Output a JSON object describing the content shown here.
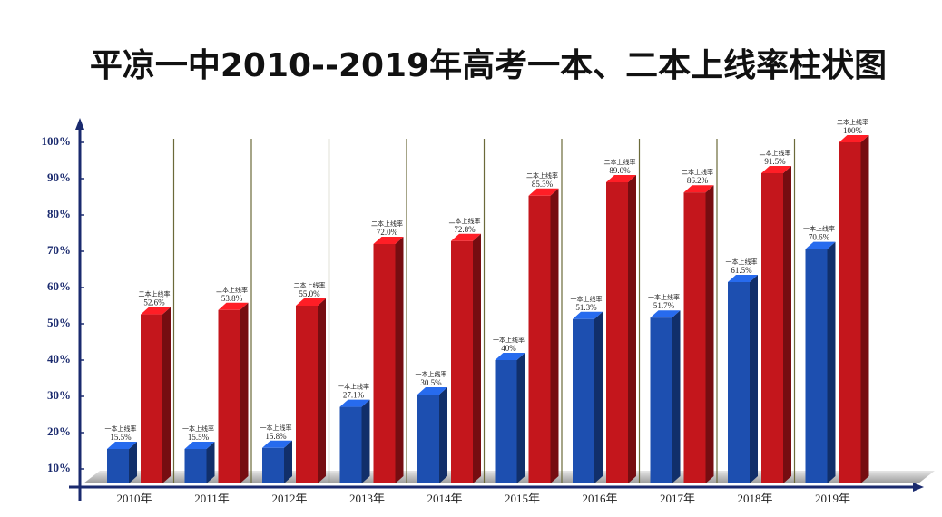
{
  "chart_data": {
    "type": "bar3d",
    "title": "平凉一中2010--2019年高考一本、二本上线率柱状图",
    "categories": [
      "2010年",
      "2011年",
      "2012年",
      "2013年",
      "2014年",
      "2015年",
      "2016年",
      "2017年",
      "2018年",
      "2019年"
    ],
    "series": [
      {
        "name": "一本上线率",
        "color": "#1d4fb0",
        "values": [
          15.5,
          15.5,
          15.8,
          27.1,
          30.5,
          40,
          51.3,
          51.7,
          61.5,
          70.6
        ],
        "value_labels": [
          "15.5%",
          "15.5%",
          "15.8%",
          "27.1%",
          "30.5%",
          "40%",
          "51.3%",
          "51.7%",
          "61.5%",
          "70.6%"
        ]
      },
      {
        "name": "二本上线率",
        "color": "#c4161c",
        "values": [
          52.6,
          53.8,
          55.0,
          72.0,
          72.8,
          85.3,
          89.0,
          86.2,
          91.5,
          100
        ],
        "value_labels": [
          "52.6%",
          "53.8%",
          "55.0%",
          "72.0%",
          "72.8%",
          "85.3%",
          "89.0%",
          "86.2%",
          "91.5%",
          "100%"
        ]
      }
    ],
    "ylim": [
      5,
      104
    ],
    "yticks": [
      {
        "value": 10,
        "label": "10%"
      },
      {
        "value": 20,
        "label": "20%"
      },
      {
        "value": 30,
        "label": "30%"
      },
      {
        "value": 40,
        "label": "40%"
      },
      {
        "value": 50,
        "label": "50%"
      },
      {
        "value": 60,
        "label": "60%"
      },
      {
        "value": 70,
        "label": "70%"
      },
      {
        "value": 80,
        "label": "80%"
      },
      {
        "value": 90,
        "label": "90%"
      },
      {
        "value": 100,
        "label": "100%"
      }
    ]
  }
}
